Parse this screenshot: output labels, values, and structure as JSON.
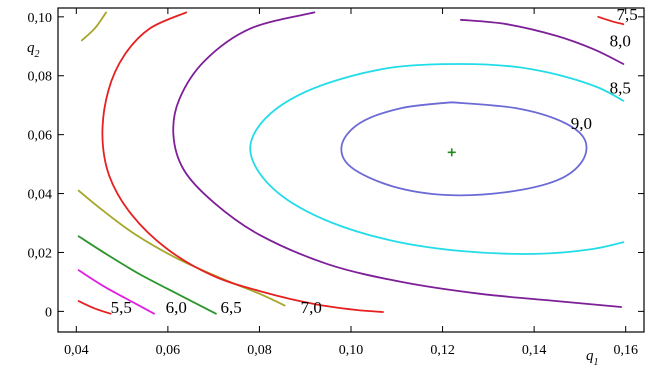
{
  "chart_data": {
    "type": "contour",
    "title": "",
    "xlabel": {
      "var": "q",
      "sub": "1"
    },
    "ylabel": {
      "var": "q",
      "sub": "2"
    },
    "xlim": [
      0.036,
      0.164
    ],
    "ylim": [
      -0.007,
      0.103
    ],
    "xticks": [
      0.04,
      0.06,
      0.08,
      0.1,
      0.12,
      0.14,
      0.16
    ],
    "xtick_labels": [
      "0,04",
      "0,06",
      "0,08",
      "0,10",
      "0,12",
      "0,14",
      "0,16"
    ],
    "yticks": [
      0,
      0.02,
      0.04,
      0.06,
      0.08,
      0.1
    ],
    "ytick_labels": [
      "0",
      "0,02",
      "0,04",
      "0,06",
      "0,08",
      "0,10"
    ],
    "grid": false,
    "optimum": {
      "x": 0.122,
      "y": 0.054,
      "marker": "+",
      "color": "#1a8a1a"
    },
    "contours": [
      {
        "level": "5,5",
        "color": "#e62020",
        "points": [
          [
            0.0405,
            0.0035
          ],
          [
            0.044,
            0.001
          ],
          [
            0.0475,
            -0.0008
          ]
        ],
        "label_at": [
          0.0475,
          -0.0005
        ]
      },
      {
        "level": "5,5",
        "color": "#e020e0",
        "points": [
          [
            0.0405,
            0.014
          ],
          [
            0.046,
            0.0085
          ],
          [
            0.0525,
            0.003
          ],
          [
            0.057,
            -0.0008
          ]
        ],
        "label_at": null
      },
      {
        "level": "6,0",
        "color": "#2a962a",
        "points": [
          [
            0.0405,
            0.0255
          ],
          [
            0.047,
            0.019
          ],
          [
            0.054,
            0.0125
          ],
          [
            0.062,
            0.006
          ],
          [
            0.0705,
            -0.0008
          ]
        ],
        "label_at": [
          0.0595,
          -0.0005
        ]
      },
      {
        "level": "6,5",
        "color": "#a6a62a",
        "points": [
          [
            0.0405,
            0.041
          ],
          [
            0.046,
            0.034
          ],
          [
            0.053,
            0.026
          ],
          [
            0.062,
            0.018
          ],
          [
            0.072,
            0.011
          ],
          [
            0.08,
            0.006
          ],
          [
            0.0855,
            0.002
          ]
        ],
        "label_at": [
          0.0715,
          -0.0005
        ]
      },
      {
        "level": "6,5",
        "color": "#a6a62a",
        "points": [
          [
            0.0412,
            0.092
          ],
          [
            0.044,
            0.096
          ],
          [
            0.0465,
            0.1015
          ]
        ],
        "label_at": null
      },
      {
        "level": "7,0",
        "color": "#e62020",
        "points": [
          [
            0.064,
            0.1015
          ],
          [
            0.056,
            0.096
          ],
          [
            0.0505,
            0.087
          ],
          [
            0.047,
            0.075
          ],
          [
            0.0457,
            0.06
          ],
          [
            0.0472,
            0.046
          ],
          [
            0.052,
            0.033
          ],
          [
            0.06,
            0.021
          ],
          [
            0.07,
            0.012
          ],
          [
            0.081,
            0.0065
          ],
          [
            0.092,
            0.0025
          ],
          [
            0.101,
            0.0005
          ],
          [
            0.107,
            -0.0002
          ]
        ],
        "label_at": [
          0.089,
          -0.0005
        ]
      },
      {
        "level": "7,5",
        "color": "#7d1f98",
        "points": [
          [
            0.092,
            0.1015
          ],
          [
            0.078,
            0.096
          ],
          [
            0.068,
            0.085
          ],
          [
            0.0625,
            0.072
          ],
          [
            0.0612,
            0.06
          ],
          [
            0.0635,
            0.048
          ],
          [
            0.07,
            0.037
          ],
          [
            0.08,
            0.026
          ],
          [
            0.095,
            0.016
          ],
          [
            0.111,
            0.01
          ],
          [
            0.128,
            0.006
          ],
          [
            0.145,
            0.0035
          ],
          [
            0.159,
            0.0015
          ]
        ],
        "label_at": null
      },
      {
        "level": "7,5",
        "color": "#e62020",
        "points": [
          [
            0.154,
            0.1
          ],
          [
            0.157,
            0.0985
          ],
          [
            0.1595,
            0.0975
          ]
        ],
        "label_at": [
          0.158,
          0.099
        ]
      },
      {
        "level": "8,0",
        "color": "#7d1f98",
        "points": [
          [
            0.124,
            0.099
          ],
          [
            0.134,
            0.0975
          ],
          [
            0.145,
            0.0935
          ],
          [
            0.153,
            0.089
          ],
          [
            0.1595,
            0.084
          ]
        ],
        "label_at": [
          0.1565,
          0.09
        ]
      },
      {
        "level": "8,5",
        "color": "#22dce8",
        "points": [
          [
            0.1595,
            0.0715
          ],
          [
            0.154,
            0.076
          ],
          [
            0.146,
            0.08
          ],
          [
            0.136,
            0.083
          ],
          [
            0.124,
            0.084
          ],
          [
            0.11,
            0.083
          ],
          [
            0.098,
            0.079
          ],
          [
            0.088,
            0.073
          ],
          [
            0.081,
            0.065
          ],
          [
            0.078,
            0.056
          ],
          [
            0.08,
            0.047
          ],
          [
            0.086,
            0.038
          ],
          [
            0.096,
            0.03
          ],
          [
            0.109,
            0.024
          ],
          [
            0.124,
            0.0205
          ],
          [
            0.14,
            0.0195
          ],
          [
            0.152,
            0.021
          ],
          [
            0.1595,
            0.0235
          ]
        ],
        "label_at": [
          0.1565,
          0.074
        ]
      },
      {
        "level": "9,0",
        "color": "#6b6bd6",
        "points": [
          [
            0.122,
            0.071
          ],
          [
            0.136,
            0.069
          ],
          [
            0.146,
            0.0645
          ],
          [
            0.151,
            0.0585
          ],
          [
            0.1505,
            0.051
          ],
          [
            0.145,
            0.0445
          ],
          [
            0.134,
            0.0405
          ],
          [
            0.121,
            0.0395
          ],
          [
            0.109,
            0.0425
          ],
          [
            0.1,
            0.049
          ],
          [
            0.098,
            0.0565
          ],
          [
            0.102,
            0.064
          ],
          [
            0.111,
            0.069
          ],
          [
            0.122,
            0.071
          ]
        ],
        "label_at": [
          0.148,
          0.062
        ]
      }
    ]
  }
}
